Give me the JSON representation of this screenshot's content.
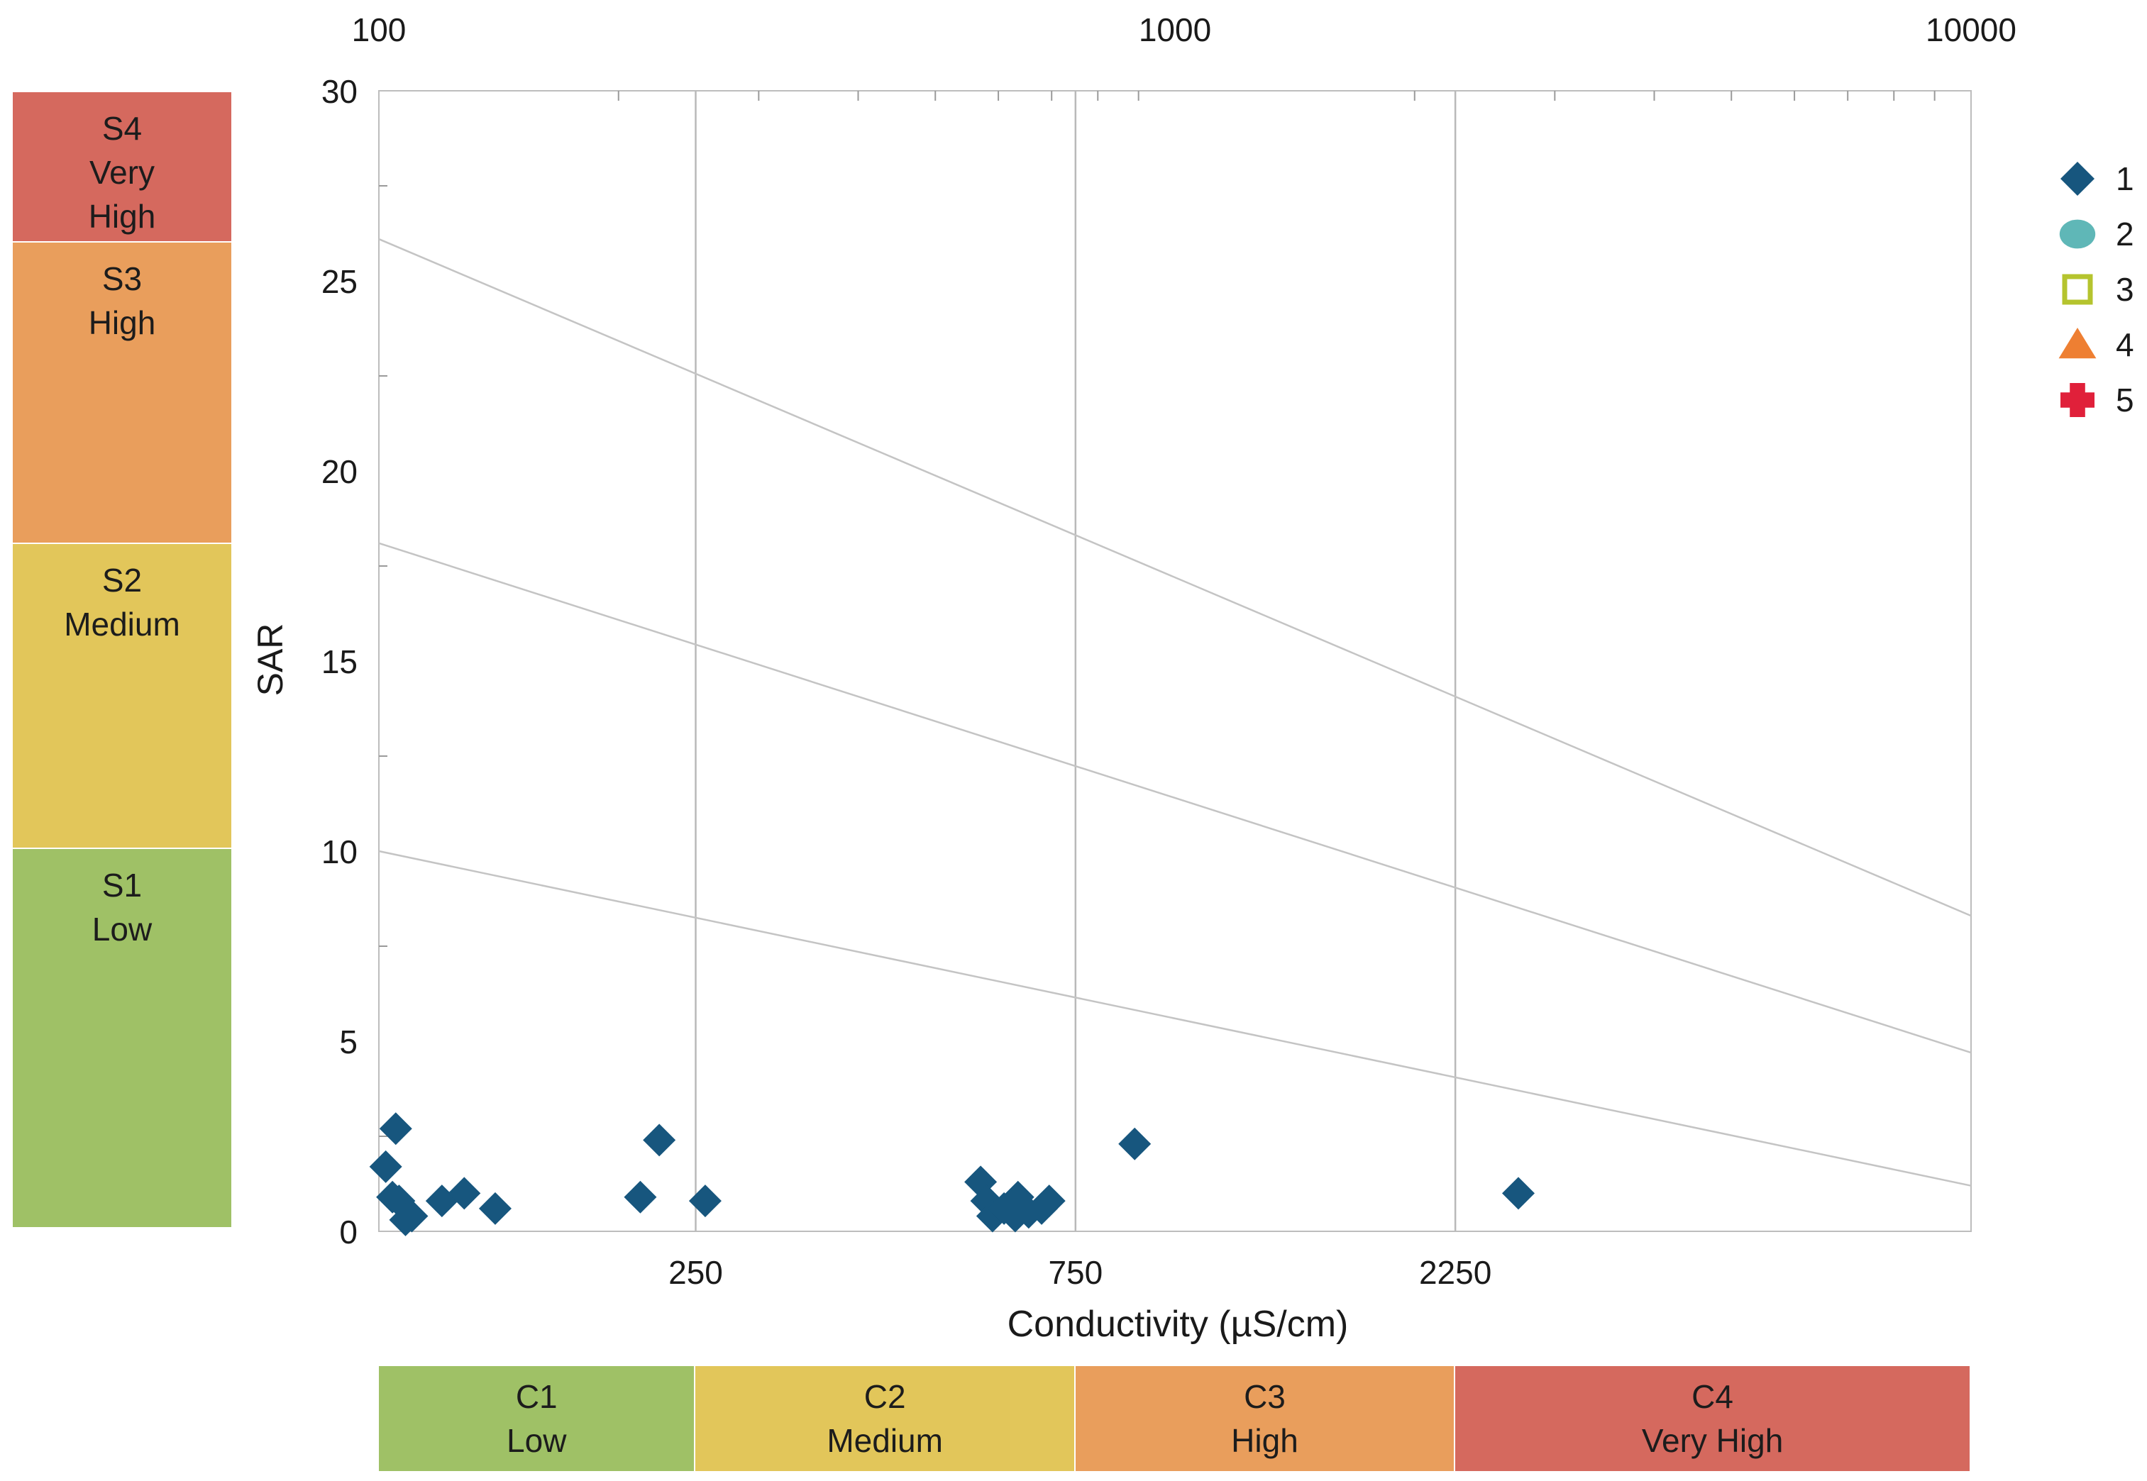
{
  "chart_data": {
    "type": "scatter",
    "title": "",
    "xlabel": "Conductivity (µS/cm)",
    "ylabel": "SAR",
    "x_scale": "log",
    "xlim": [
      100,
      10000
    ],
    "ylim": [
      0,
      30
    ],
    "y_ticks": [
      "0",
      "5",
      "10",
      "15",
      "20",
      "25",
      "30"
    ],
    "top_axis_ticks": [
      {
        "value": 100,
        "label": "100"
      },
      {
        "value": 1000,
        "label": "1000"
      },
      {
        "value": 10000,
        "label": "10000"
      }
    ],
    "bottom_axis_ticks": [
      {
        "value": 250,
        "label": "250"
      },
      {
        "value": 750,
        "label": "750"
      },
      {
        "value": 2250,
        "label": "2250"
      }
    ],
    "vertical_grid_at": [
      250,
      750,
      2250
    ],
    "grid": true,
    "legend_position": "right",
    "boundary_lines": [
      {
        "points": [
          [
            100,
            10.0
          ],
          [
            10000,
            1.2
          ]
        ]
      },
      {
        "points": [
          [
            100,
            18.1
          ],
          [
            10000,
            4.7
          ]
        ]
      },
      {
        "points": [
          [
            100,
            26.1
          ],
          [
            10000,
            8.3
          ]
        ]
      }
    ],
    "series": [
      {
        "name": "1",
        "marker": "diamond",
        "color": "#17567e",
        "points": [
          [
            105,
            2.7
          ],
          [
            102,
            1.7
          ],
          [
            104,
            0.9
          ],
          [
            106,
            0.8
          ],
          [
            108,
            0.3
          ],
          [
            110,
            0.4
          ],
          [
            120,
            0.8
          ],
          [
            128,
            1.0
          ],
          [
            140,
            0.6
          ],
          [
            213,
            0.9
          ],
          [
            225,
            2.4
          ],
          [
            257,
            0.8
          ],
          [
            570,
            1.3
          ],
          [
            580,
            0.8
          ],
          [
            590,
            0.4
          ],
          [
            610,
            0.6
          ],
          [
            630,
            0.4
          ],
          [
            635,
            0.9
          ],
          [
            655,
            0.5
          ],
          [
            680,
            0.6
          ],
          [
            695,
            0.8
          ],
          [
            890,
            2.3
          ],
          [
            2700,
            1.0
          ]
        ]
      },
      {
        "name": "2",
        "marker": "circle",
        "color": "#5fb7b7",
        "points": []
      },
      {
        "name": "3",
        "marker": "square-open",
        "color": "#b5c42e",
        "points": []
      },
      {
        "name": "4",
        "marker": "triangle",
        "color": "#ee7f32",
        "points": []
      },
      {
        "name": "5",
        "marker": "cross",
        "color": "#e0203a",
        "points": []
      }
    ]
  },
  "salinity_bands": [
    {
      "code": "C1",
      "label": "Low",
      "from": 100,
      "to": 250,
      "color": "#9fc166"
    },
    {
      "code": "C2",
      "label": "Medium",
      "from": 250,
      "to": 750,
      "color": "#e2c65a"
    },
    {
      "code": "C3",
      "label": "High",
      "from": 750,
      "to": 2250,
      "color": "#e99e5c"
    },
    {
      "code": "C4",
      "label": "Very High",
      "from": 2250,
      "to": 10000,
      "color": "#d5695e"
    }
  ],
  "sodium_bands": [
    {
      "code": "S4",
      "lines": [
        "S4",
        "Very",
        "High"
      ],
      "color": "#d5695e"
    },
    {
      "code": "S3",
      "lines": [
        "S3",
        "High"
      ],
      "color": "#e99e5c"
    },
    {
      "code": "S2",
      "lines": [
        "S2",
        "Medium"
      ],
      "color": "#e2c65a"
    },
    {
      "code": "S1",
      "lines": [
        "S1",
        "Low"
      ],
      "color": "#9fc166"
    }
  ]
}
